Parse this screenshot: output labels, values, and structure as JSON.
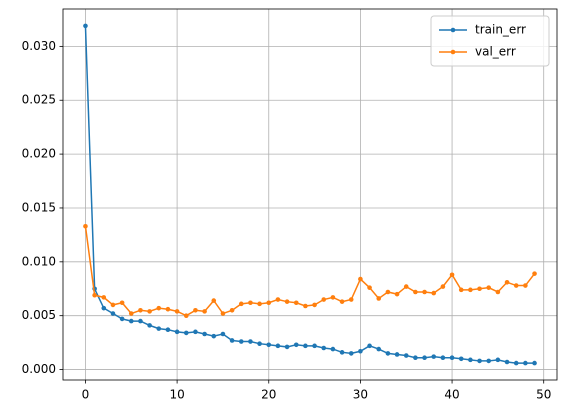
{
  "chart_data": {
    "type": "line",
    "x": [
      0,
      1,
      2,
      3,
      4,
      5,
      6,
      7,
      8,
      9,
      10,
      11,
      12,
      13,
      14,
      15,
      16,
      17,
      18,
      19,
      20,
      21,
      22,
      23,
      24,
      25,
      26,
      27,
      28,
      29,
      30,
      31,
      32,
      33,
      34,
      35,
      36,
      37,
      38,
      39,
      40,
      41,
      42,
      43,
      44,
      45,
      46,
      47,
      48,
      49
    ],
    "series": [
      {
        "name": "train_err",
        "color": "#1f77b4",
        "values": [
          0.0319,
          0.0075,
          0.0057,
          0.0052,
          0.0047,
          0.0045,
          0.0045,
          0.0041,
          0.0038,
          0.0037,
          0.0035,
          0.0034,
          0.0035,
          0.0033,
          0.0031,
          0.0033,
          0.0027,
          0.0026,
          0.0026,
          0.0024,
          0.0023,
          0.0022,
          0.0021,
          0.0023,
          0.0022,
          0.0022,
          0.002,
          0.0019,
          0.0016,
          0.0015,
          0.0017,
          0.0022,
          0.0019,
          0.0015,
          0.0014,
          0.0013,
          0.0011,
          0.0011,
          0.0012,
          0.0011,
          0.0011,
          0.001,
          0.0009,
          0.0008,
          0.0008,
          0.0009,
          0.0007,
          0.0006,
          0.0006,
          0.0006
        ]
      },
      {
        "name": "val_err",
        "color": "#ff7f0e",
        "values": [
          0.0133,
          0.0069,
          0.0067,
          0.006,
          0.0062,
          0.0052,
          0.0055,
          0.0054,
          0.0057,
          0.0056,
          0.0054,
          0.005,
          0.0055,
          0.0054,
          0.0064,
          0.0052,
          0.0055,
          0.0061,
          0.0062,
          0.0061,
          0.0062,
          0.0065,
          0.0063,
          0.0062,
          0.0059,
          0.006,
          0.0065,
          0.0067,
          0.0063,
          0.0065,
          0.0084,
          0.0076,
          0.0066,
          0.0072,
          0.007,
          0.0077,
          0.0072,
          0.0072,
          0.0071,
          0.0077,
          0.0088,
          0.0074,
          0.0074,
          0.0075,
          0.0076,
          0.0072,
          0.0081,
          0.0078,
          0.0078,
          0.0089
        ]
      }
    ],
    "xlim": [
      -2.45,
      51.45
    ],
    "xticks": [
      0,
      10,
      20,
      30,
      40,
      50
    ],
    "ylim": [
      -0.00097,
      0.03347
    ],
    "yticks": [
      {
        "value": 0,
        "label": "0.000"
      },
      {
        "value": 0.005,
        "label": "0.005"
      },
      {
        "value": 0.01,
        "label": "0.010"
      },
      {
        "value": 0.015,
        "label": "0.015"
      },
      {
        "value": 0.02,
        "label": "0.020"
      },
      {
        "value": 0.025,
        "label": "0.025"
      },
      {
        "value": 0.03,
        "label": "0.030"
      }
    ],
    "grid": true,
    "legend": "upper right"
  }
}
